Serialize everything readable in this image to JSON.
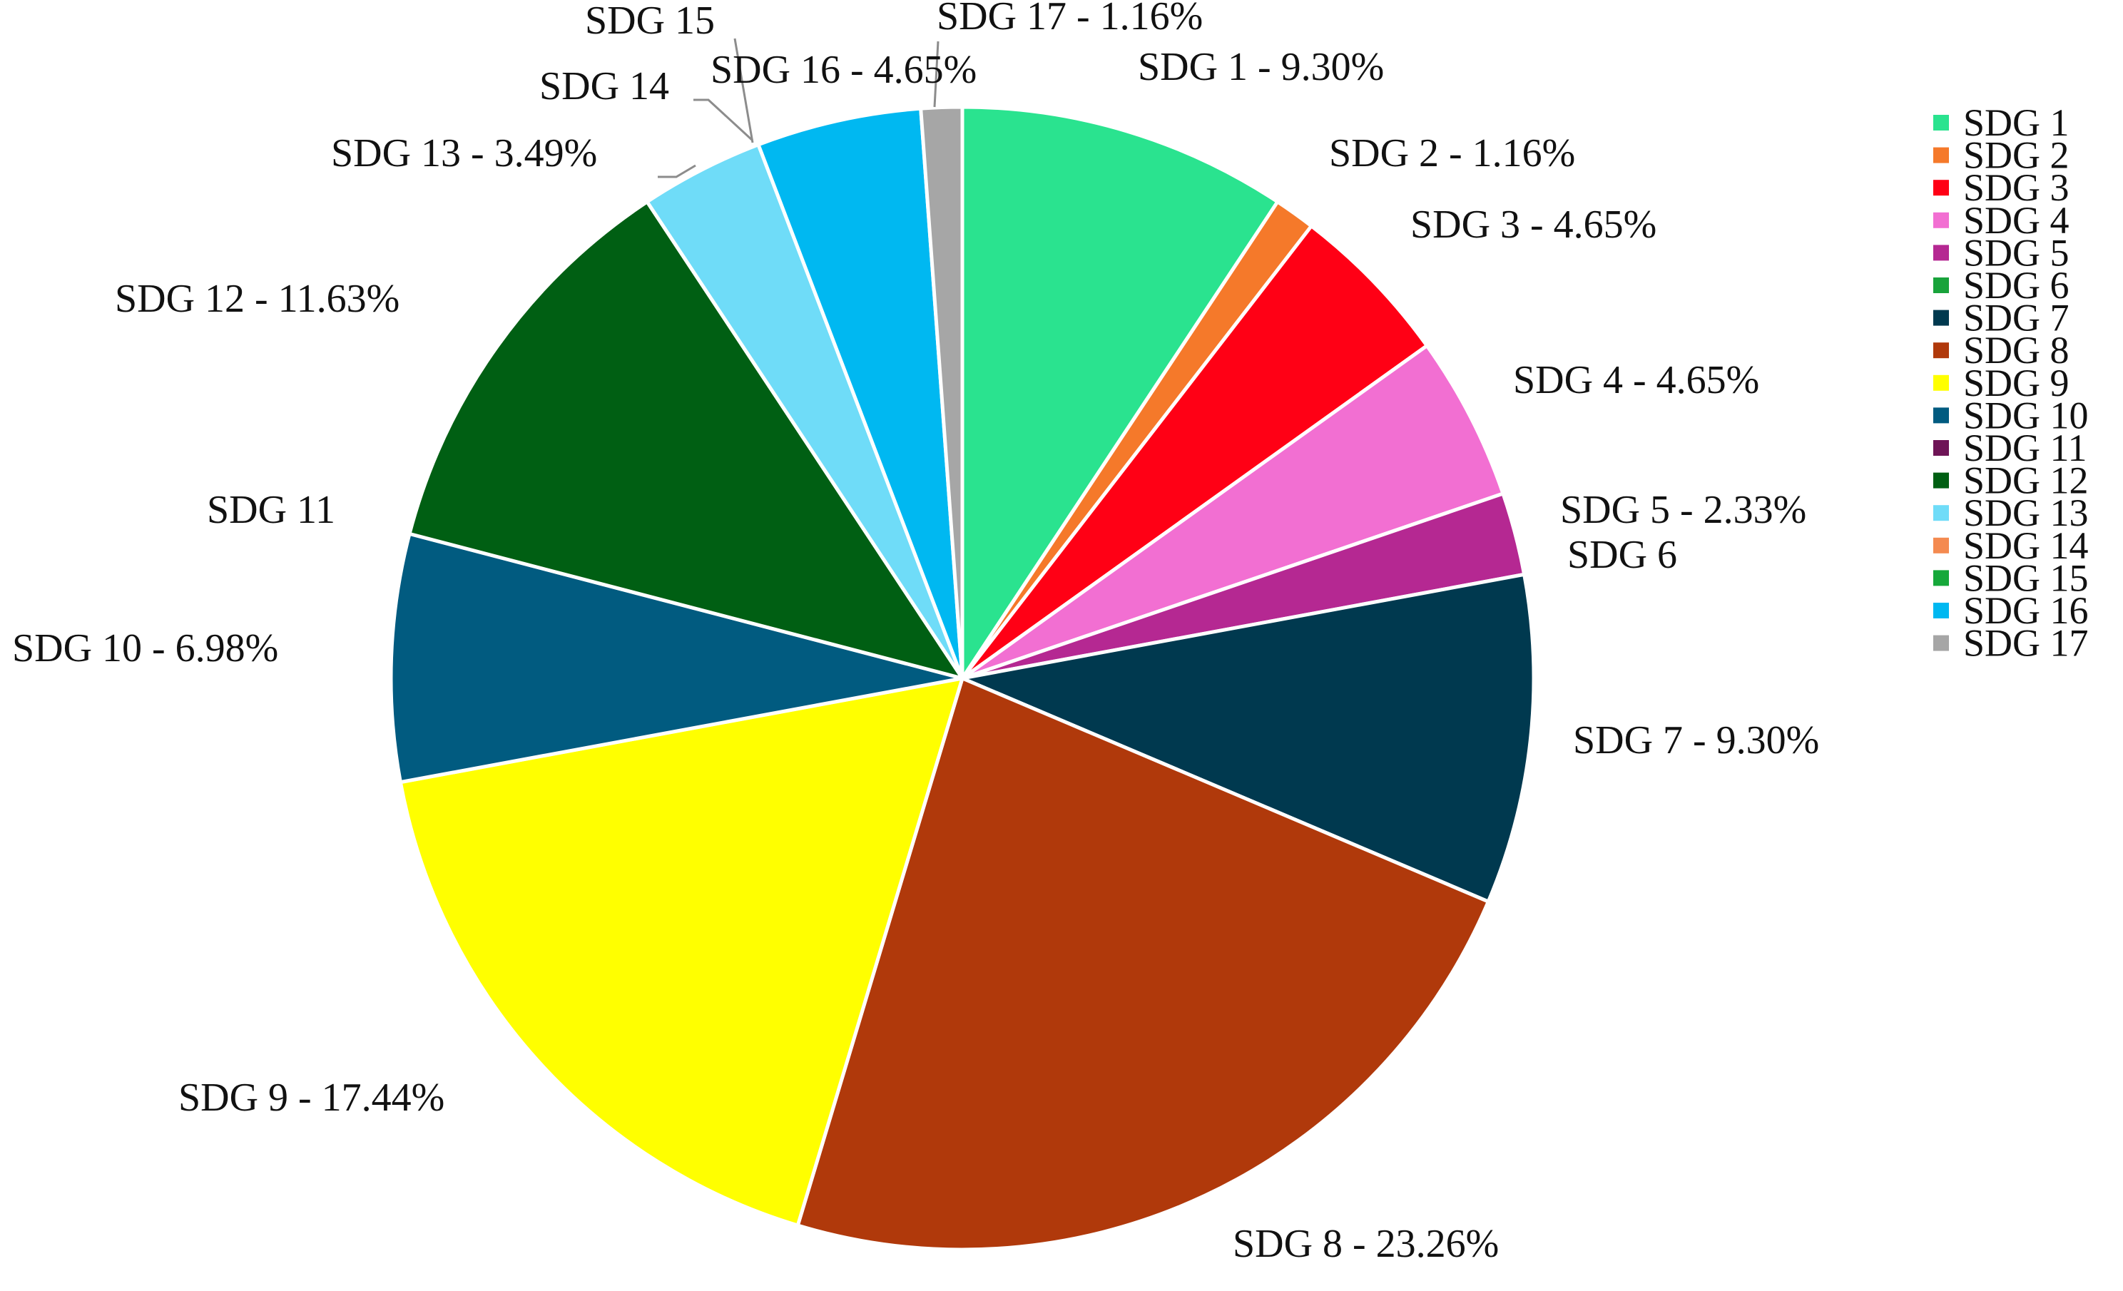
{
  "chart_data": {
    "type": "pie",
    "title": "",
    "legend_position": "right",
    "slices": [
      {
        "name": "SDG 1",
        "value": 9.3,
        "label": "SDG 1 - 9.30%",
        "color": "#2ae38f"
      },
      {
        "name": "SDG 2",
        "value": 1.16,
        "label": "SDG 2 - 1.16%",
        "color": "#f5792a"
      },
      {
        "name": "SDG 3",
        "value": 4.65,
        "label": "SDG 3 - 4.65%",
        "color": "#ff0015"
      },
      {
        "name": "SDG 4",
        "value": 4.65,
        "label": "SDG 4 - 4.65%",
        "color": "#f26fd2"
      },
      {
        "name": "SDG 5",
        "value": 2.33,
        "label": "SDG 5 - 2.33%",
        "color": "#b52892"
      },
      {
        "name": "SDG 6",
        "value": 0,
        "label": "SDG 6",
        "color": "#19a33b"
      },
      {
        "name": "SDG 7",
        "value": 9.3,
        "label": "SDG 7 - 9.30%",
        "color": "#00394f"
      },
      {
        "name": "SDG 8",
        "value": 23.26,
        "label": "SDG 8 - 23.26%",
        "color": "#b0390b"
      },
      {
        "name": "SDG 9",
        "value": 17.44,
        "label": "SDG 9 - 17.44%",
        "color": "#ffff00"
      },
      {
        "name": "SDG 10",
        "value": 6.98,
        "label": "SDG 10 -  6.98%",
        "color": "#015b80"
      },
      {
        "name": "SDG 11",
        "value": 0,
        "label": "SDG 11",
        "color": "#6e1456"
      },
      {
        "name": "SDG 12",
        "value": 11.63,
        "label": "SDG 12 - 11.63%",
        "color": "#005f13"
      },
      {
        "name": "SDG 13",
        "value": 3.49,
        "label": "SDG 13 - 3.49%",
        "color": "#6fdcf8"
      },
      {
        "name": "SDG 14",
        "value": 0,
        "label": "SDG 14",
        "color": "#f48a50"
      },
      {
        "name": "SDG 15",
        "value": 0,
        "label": "SDG 15",
        "color": "#16a83a"
      },
      {
        "name": "SDG 16",
        "value": 4.65,
        "label": "SDG 16 - 4.65%",
        "color": "#00b8f1"
      },
      {
        "name": "SDG 17",
        "value": 1.16,
        "label": "SDG 17 - 1.16%",
        "color": "#a6a6a6"
      }
    ]
  }
}
